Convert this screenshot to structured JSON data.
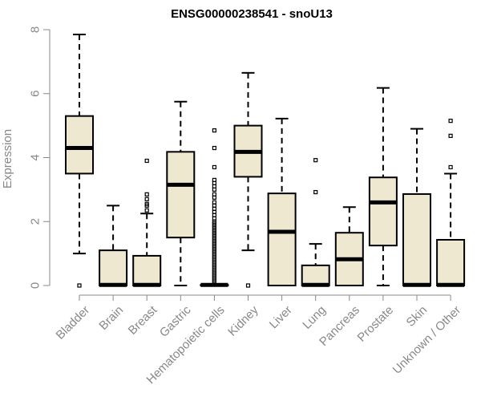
{
  "chart_data": {
    "type": "boxplot",
    "title": "ENSG00000238541 - snoU13",
    "ylabel": "Expression",
    "xlabel": "",
    "ylim": [
      0,
      8
    ],
    "yticks": [
      0,
      2,
      4,
      6,
      8
    ],
    "box_fill": "#efe8d0",
    "categories": [
      "Bladder",
      "Brain",
      "Breast",
      "Gastric",
      "Hematopoietic cells",
      "Kidney",
      "Liver",
      "Lung",
      "Pancreas",
      "Prostate",
      "Skin",
      "Unknown / Other"
    ],
    "boxes": [
      {
        "low": 1.0,
        "q1": 3.5,
        "median": 4.3,
        "q3": 5.3,
        "high": 7.85,
        "outliers": [
          0.0
        ]
      },
      {
        "low": 0.0,
        "q1": 0.0,
        "median": 0.02,
        "q3": 1.1,
        "high": 2.5,
        "outliers": []
      },
      {
        "low": 0.0,
        "q1": 0.0,
        "median": 0.02,
        "q3": 0.93,
        "high": 2.25,
        "outliers": [
          2.35,
          2.5,
          2.55,
          2.7,
          2.85,
          3.9
        ]
      },
      {
        "low": 0.0,
        "q1": 1.5,
        "median": 3.15,
        "q3": 4.18,
        "high": 5.75,
        "outliers": []
      },
      {
        "low": 0.0,
        "q1": 0.0,
        "median": 0.02,
        "q3": 0.02,
        "high": 0.02,
        "outliers": [
          0.1,
          0.15,
          0.2,
          0.25,
          0.3,
          0.35,
          0.4,
          0.45,
          0.5,
          0.55,
          0.6,
          0.65,
          0.7,
          0.75,
          0.8,
          0.85,
          0.9,
          0.95,
          1.0,
          1.05,
          1.1,
          1.15,
          1.2,
          1.25,
          1.3,
          1.35,
          1.4,
          1.45,
          1.5,
          1.55,
          1.6,
          1.65,
          1.7,
          1.75,
          1.8,
          1.85,
          1.9,
          1.95,
          2.0,
          2.1,
          2.2,
          2.3,
          2.4,
          2.5,
          2.6,
          2.75,
          2.85,
          3.0,
          3.1,
          3.2,
          3.3,
          3.7,
          4.3,
          4.85
        ]
      },
      {
        "low": 1.1,
        "q1": 3.4,
        "median": 4.18,
        "q3": 5.0,
        "high": 6.65,
        "outliers": [
          0.0
        ]
      },
      {
        "low": 0.0,
        "q1": 0.0,
        "median": 1.68,
        "q3": 2.88,
        "high": 5.22,
        "outliers": []
      },
      {
        "low": 0.0,
        "q1": 0.0,
        "median": 0.02,
        "q3": 0.63,
        "high": 1.3,
        "outliers": [
          2.92,
          3.92
        ]
      },
      {
        "low": 0.0,
        "q1": 0.0,
        "median": 0.82,
        "q3": 1.65,
        "high": 2.45,
        "outliers": []
      },
      {
        "low": 0.0,
        "q1": 1.25,
        "median": 2.6,
        "q3": 3.38,
        "high": 6.18,
        "outliers": []
      },
      {
        "low": 0.0,
        "q1": 0.0,
        "median": 0.02,
        "q3": 2.86,
        "high": 4.9,
        "outliers": []
      },
      {
        "low": 0.0,
        "q1": 0.0,
        "median": 0.02,
        "q3": 1.43,
        "high": 3.5,
        "outliers": [
          3.7,
          4.68,
          5.15
        ]
      }
    ]
  }
}
